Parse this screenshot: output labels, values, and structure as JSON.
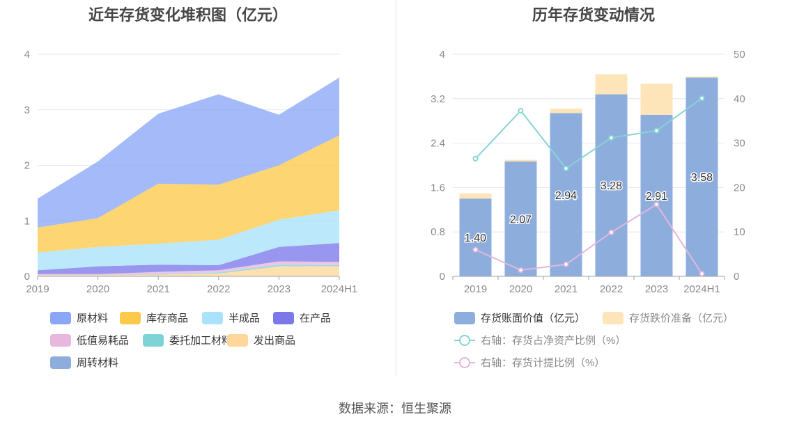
{
  "left_chart": {
    "title": "近年存货变化堆积图（亿元）"
  },
  "right_chart": {
    "title": "历年存货变动情况"
  },
  "source_text": "数据来源：恒生聚源",
  "colors": {
    "原材料": "#8aa6f7",
    "库存商品": "#fcc94a",
    "半成品": "#a9e2fb",
    "在产品": "#7b79ea",
    "低值易耗品": "#e7b7de",
    "委托加工材料": "#7ed3d6",
    "发出商品": "#ffd79a",
    "周转材料": "#8daedd",
    "book_value": "#8daedd",
    "provision": "#fde4b9",
    "net_asset_line": "#86d4d6",
    "provision_ratio_line": "#e3b6dc"
  },
  "chart_data": [
    {
      "type": "area",
      "stacked": true,
      "categories": [
        "2019",
        "2020",
        "2021",
        "2022",
        "2023",
        "2024H1"
      ],
      "ylim": [
        0,
        4
      ],
      "yticks": [
        "0",
        "1",
        "2",
        "3",
        "4"
      ],
      "grid": true,
      "legend_position": "bottom",
      "series": [
        {
          "name": "周转材料",
          "values": [
            0.0,
            0.0,
            0.0,
            0.0,
            0.0,
            0.0
          ]
        },
        {
          "name": "发出商品",
          "values": [
            0.02,
            0.02,
            0.03,
            0.05,
            0.18,
            0.18
          ]
        },
        {
          "name": "委托加工材料",
          "values": [
            0.0,
            0.0,
            0.01,
            0.02,
            0.03,
            0.02
          ]
        },
        {
          "name": "低值易耗品",
          "values": [
            0.02,
            0.02,
            0.04,
            0.04,
            0.06,
            0.06
          ]
        },
        {
          "name": "在产品",
          "values": [
            0.07,
            0.14,
            0.13,
            0.09,
            0.26,
            0.34
          ]
        },
        {
          "name": "半成品",
          "values": [
            0.32,
            0.35,
            0.38,
            0.46,
            0.49,
            0.59
          ]
        },
        {
          "name": "库存商品",
          "values": [
            0.45,
            0.52,
            1.08,
            0.99,
            0.98,
            1.35
          ]
        },
        {
          "name": "原材料",
          "values": [
            0.52,
            1.02,
            1.26,
            1.63,
            0.91,
            1.04
          ]
        }
      ],
      "legend": [
        "原材料",
        "库存商品",
        "半成品",
        "在产品",
        "低值易耗品",
        "委托加工材料",
        "发出商品",
        "周转材料"
      ]
    },
    {
      "type": "bar",
      "stacked": true,
      "categories": [
        "2019",
        "2020",
        "2021",
        "2022",
        "2023",
        "2024H1"
      ],
      "ylim": [
        0,
        4
      ],
      "yticks": [
        "0",
        "0.8",
        "1.6",
        "2.4",
        "3.2",
        "4"
      ],
      "y2lim": [
        0,
        50
      ],
      "y2ticks": [
        "0",
        "10",
        "20",
        "30",
        "40",
        "50"
      ],
      "grid": true,
      "legend_position": "bottom",
      "series": [
        {
          "name": "存货账面价值（亿元）",
          "type": "bar",
          "axis": "left",
          "values": [
            1.4,
            2.07,
            2.94,
            3.28,
            2.91,
            3.58
          ],
          "labels": [
            "1.40",
            "2.07",
            "2.94",
            "3.28",
            "2.91",
            "3.58"
          ]
        },
        {
          "name": "存货跌价准备（亿元）",
          "type": "bar",
          "axis": "left",
          "values": [
            0.09,
            0.03,
            0.08,
            0.36,
            0.56,
            0.02
          ]
        },
        {
          "name": "右轴：存货占净资产比例（%）",
          "type": "line",
          "axis": "right",
          "values": [
            26.5,
            37.3,
            24.3,
            31.2,
            32.8,
            40.1
          ]
        },
        {
          "name": "右轴：存货计提比例（%）",
          "type": "line",
          "axis": "right",
          "values": [
            6.0,
            1.4,
            2.7,
            9.9,
            16.2,
            0.6
          ]
        }
      ]
    }
  ]
}
